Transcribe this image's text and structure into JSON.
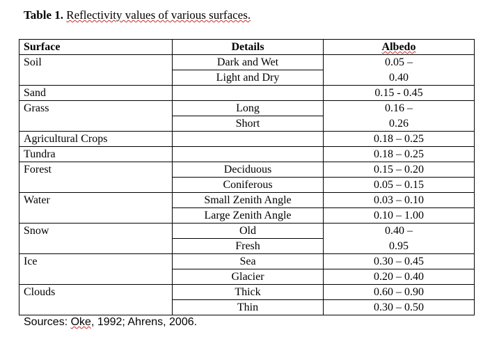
{
  "caption": {
    "label": "Table 1.",
    "text": "Reflectivity values of various surfaces."
  },
  "table": {
    "headers": [
      "Surface",
      "Details",
      "Albedo"
    ],
    "rows": [
      {
        "surface": "Soil",
        "detail": "Dark and Wet",
        "albedo": "0.05 –"
      },
      {
        "surface": "",
        "detail": "Light and Dry",
        "albedo": "0.40"
      },
      {
        "surface": "Sand",
        "detail": "",
        "albedo": "0.15 - 0.45"
      },
      {
        "surface": "Grass",
        "detail": "Long",
        "albedo": "0.16 –"
      },
      {
        "surface": "",
        "detail": "Short",
        "albedo": "0.26"
      },
      {
        "surface": "Agricultural Crops",
        "detail": "",
        "albedo": "0.18 – 0.25"
      },
      {
        "surface": "Tundra",
        "detail": "",
        "albedo": "0.18 – 0.25"
      },
      {
        "surface": "Forest",
        "detail": "Deciduous",
        "albedo": "0.15 – 0.20"
      },
      {
        "surface": "",
        "detail": "Coniferous",
        "albedo": "0.05 – 0.15"
      },
      {
        "surface": "Water",
        "detail": "Small Zenith Angle",
        "albedo": "0.03 – 0.10"
      },
      {
        "surface": "",
        "detail": "Large Zenith Angle",
        "albedo": "0.10 – 1.00"
      },
      {
        "surface": "Snow",
        "detail": "Old",
        "albedo": "0.40 –"
      },
      {
        "surface": "",
        "detail": "Fresh",
        "albedo": "0.95"
      },
      {
        "surface": "Ice",
        "detail": "Sea",
        "albedo": "0.30 – 0.45"
      },
      {
        "surface": "",
        "detail": "Glacier",
        "albedo": "0.20 – 0.40"
      },
      {
        "surface": "Clouds",
        "detail": "Thick",
        "albedo": "0.60 – 0.90"
      },
      {
        "surface": "",
        "detail": "Thin",
        "albedo": "0.30 – 0.50"
      }
    ]
  },
  "source": {
    "prefix": "Sources: ",
    "author1": "Oke",
    "rest": ", 1992; Ahrens, 2006."
  }
}
